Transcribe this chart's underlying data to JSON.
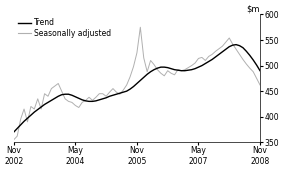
{
  "title": "",
  "ylim": [
    350,
    600
  ],
  "yticks": [
    350,
    400,
    450,
    500,
    550,
    600
  ],
  "xtick_labels": [
    "Nov\n2002",
    "May\n2004",
    "Nov\n2005",
    "May\n2007",
    "Nov\n2008"
  ],
  "xtick_positions": [
    0,
    18,
    36,
    54,
    72
  ],
  "legend_entries": [
    "Trend",
    "Seasonally adjusted"
  ],
  "trend_color": "#000000",
  "seasonal_color": "#b0b0b0",
  "background_color": "#ffffff",
  "trend_linewidth": 1.0,
  "seasonal_linewidth": 0.7,
  "trend_values": [
    370,
    377,
    384,
    391,
    397,
    403,
    409,
    414,
    419,
    424,
    428,
    432,
    436,
    440,
    443,
    444,
    444,
    442,
    439,
    436,
    433,
    431,
    430,
    430,
    431,
    433,
    435,
    437,
    440,
    442,
    444,
    446,
    448,
    450,
    454,
    459,
    465,
    471,
    477,
    483,
    488,
    492,
    495,
    497,
    497,
    496,
    494,
    492,
    491,
    490,
    490,
    491,
    492,
    494,
    497,
    500,
    504,
    508,
    512,
    517,
    522,
    527,
    532,
    537,
    540,
    541,
    539,
    535,
    528,
    520,
    511,
    501,
    490
  ],
  "seasonal_values": [
    355,
    362,
    395,
    415,
    390,
    420,
    415,
    435,
    415,
    445,
    440,
    455,
    460,
    465,
    450,
    435,
    430,
    428,
    422,
    418,
    428,
    432,
    438,
    432,
    438,
    445,
    445,
    440,
    448,
    455,
    448,
    444,
    452,
    462,
    478,
    498,
    525,
    575,
    515,
    488,
    510,
    502,
    492,
    485,
    480,
    490,
    485,
    482,
    492,
    490,
    492,
    496,
    500,
    505,
    514,
    516,
    510,
    518,
    522,
    528,
    533,
    538,
    546,
    554,
    542,
    532,
    522,
    512,
    503,
    495,
    488,
    475,
    462
  ]
}
